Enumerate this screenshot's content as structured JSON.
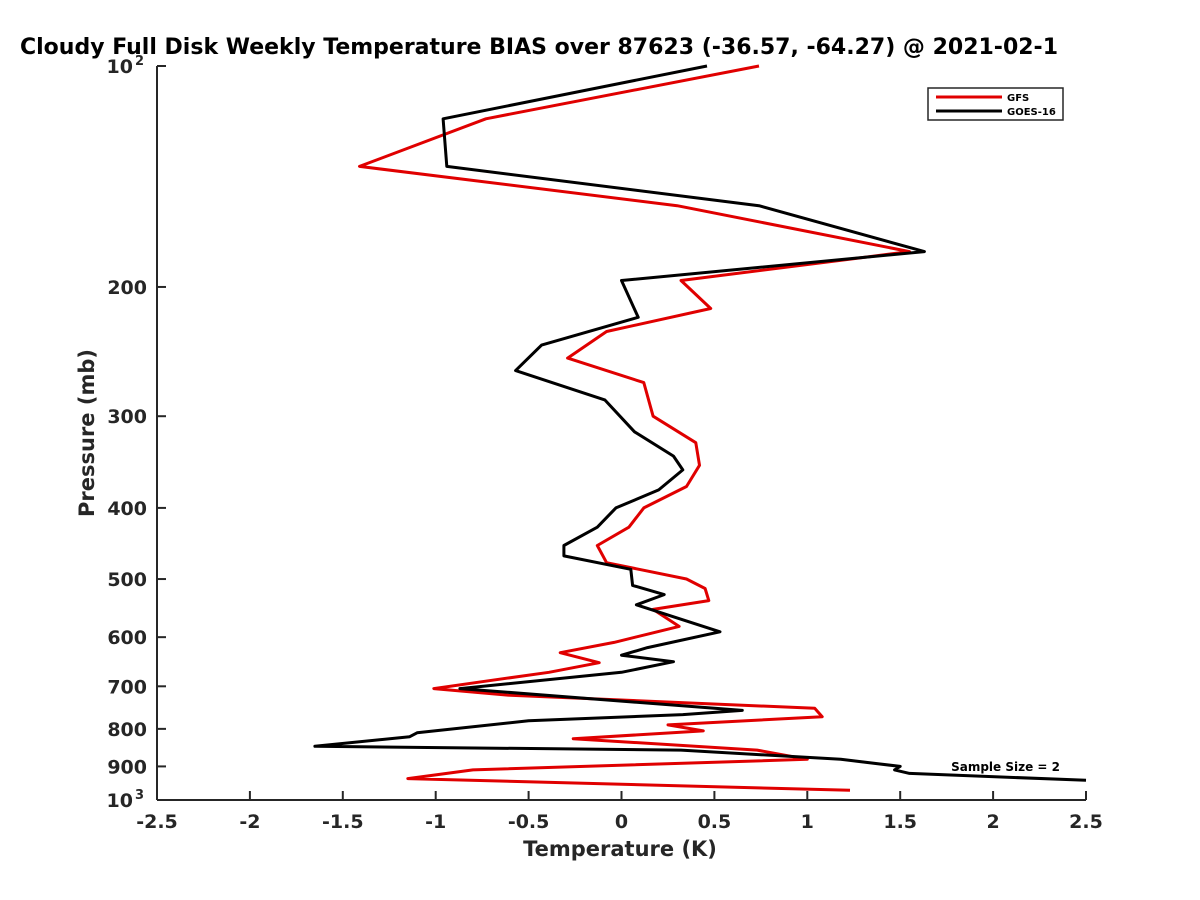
{
  "chart_data": {
    "type": "line",
    "title": "Cloudy Full Disk Weekly Temperature BIAS over 87623 (-36.57, -64.27) @ 2021-02-1",
    "xlabel": "Temperature (K)",
    "ylabel": "Pressure (mb)",
    "xlim": [
      -2.5,
      2.5
    ],
    "ylim": [
      100,
      1000
    ],
    "y_scale": "log",
    "y_reversed": true,
    "grid": false,
    "legend_position": "top-right",
    "x_ticks": [
      -2.5,
      -2,
      -1.5,
      -1,
      -0.5,
      0,
      0.5,
      1,
      1.5,
      2,
      2.5
    ],
    "x_tick_labels": [
      "-2.5",
      "-2",
      "-1.5",
      "-1",
      "-0.5",
      "0",
      "0.5",
      "1",
      "1.5",
      "2",
      "2.5"
    ],
    "y_ticks": [
      {
        "value": 100,
        "label": "10",
        "exp": "2"
      },
      {
        "value": 200,
        "label": "200"
      },
      {
        "value": 300,
        "label": "300"
      },
      {
        "value": 400,
        "label": "400"
      },
      {
        "value": 500,
        "label": "500"
      },
      {
        "value": 600,
        "label": "600"
      },
      {
        "value": 700,
        "label": "700"
      },
      {
        "value": 800,
        "label": "800"
      },
      {
        "value": 900,
        "label": "900"
      },
      {
        "value": 1000,
        "label": "10",
        "exp": "3"
      }
    ],
    "annotation": "Sample Size = 2",
    "series": [
      {
        "name": "GFS",
        "color": "#e00000",
        "points": [
          [
            0.74,
            100
          ],
          [
            -0.73,
            118
          ],
          [
            -1.41,
            137
          ],
          [
            0.3,
            155
          ],
          [
            1.55,
            179
          ],
          [
            0.32,
            196
          ],
          [
            0.48,
            214
          ],
          [
            -0.08,
            230
          ],
          [
            -0.29,
            250
          ],
          [
            0.12,
            270
          ],
          [
            0.17,
            300
          ],
          [
            0.4,
            326
          ],
          [
            0.42,
            350
          ],
          [
            0.35,
            374
          ],
          [
            0.12,
            400
          ],
          [
            0.04,
            425
          ],
          [
            -0.13,
            450
          ],
          [
            -0.08,
            475
          ],
          [
            0.35,
            500
          ],
          [
            0.45,
            515
          ],
          [
            0.47,
            535
          ],
          [
            0.17,
            550
          ],
          [
            0.31,
            580
          ],
          [
            -0.04,
            610
          ],
          [
            -0.33,
            630
          ],
          [
            -0.12,
            650
          ],
          [
            -0.39,
            670
          ],
          [
            -0.75,
            690
          ],
          [
            -1.01,
            705
          ],
          [
            -0.6,
            720
          ],
          [
            1.04,
            750
          ],
          [
            1.08,
            770
          ],
          [
            0.25,
            790
          ],
          [
            0.44,
            805
          ],
          [
            -0.26,
            825
          ],
          [
            0.73,
            855
          ],
          [
            1.0,
            880
          ],
          [
            -0.8,
            910
          ],
          [
            -1.15,
            935
          ],
          [
            1.23,
            970
          ]
        ]
      },
      {
        "name": "GOES-16",
        "color": "#000000",
        "points": [
          [
            0.46,
            100
          ],
          [
            -0.96,
            118
          ],
          [
            -0.94,
            137
          ],
          [
            0.74,
            155
          ],
          [
            1.63,
            179
          ],
          [
            0.0,
            196
          ],
          [
            0.09,
            220
          ],
          [
            -0.43,
            240
          ],
          [
            -0.57,
            260
          ],
          [
            -0.09,
            285
          ],
          [
            0.07,
            315
          ],
          [
            0.28,
            340
          ],
          [
            0.33,
            355
          ],
          [
            0.2,
            378
          ],
          [
            -0.03,
            400
          ],
          [
            -0.13,
            425
          ],
          [
            -0.31,
            450
          ],
          [
            -0.31,
            465
          ],
          [
            0.05,
            485
          ],
          [
            0.06,
            510
          ],
          [
            0.23,
            525
          ],
          [
            0.08,
            542
          ],
          [
            0.53,
            590
          ],
          [
            0.14,
            620
          ],
          [
            0.0,
            635
          ],
          [
            0.28,
            648
          ],
          [
            0.0,
            670
          ],
          [
            -0.87,
            705
          ],
          [
            0.65,
            755
          ],
          [
            0.33,
            765
          ],
          [
            -0.5,
            780
          ],
          [
            -1.1,
            810
          ],
          [
            -1.14,
            820
          ],
          [
            -1.65,
            845
          ],
          [
            0.32,
            855
          ],
          [
            1.18,
            880
          ],
          [
            1.5,
            900
          ],
          [
            1.47,
            910
          ],
          [
            1.55,
            920
          ],
          [
            2.5,
            940
          ]
        ]
      }
    ]
  },
  "colors": {
    "axis": "#262626",
    "legend_border": "#262626",
    "background": "#ffffff"
  }
}
